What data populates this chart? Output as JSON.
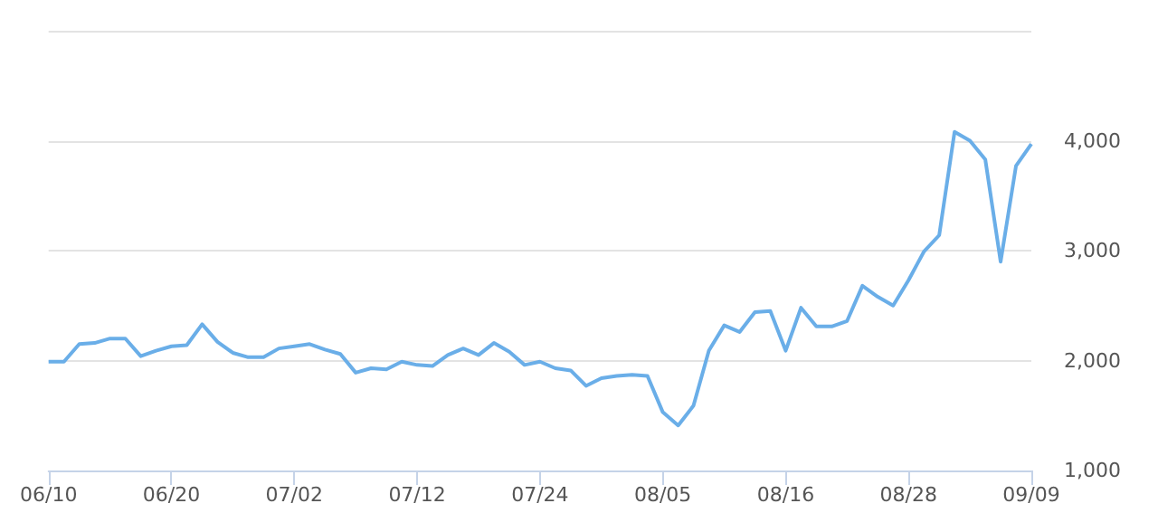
{
  "chart_data": {
    "type": "line",
    "categories": [
      "06/10",
      null,
      null,
      null,
      null,
      null,
      null,
      null,
      "06/20",
      null,
      null,
      null,
      null,
      null,
      null,
      null,
      "07/02",
      null,
      null,
      null,
      null,
      null,
      null,
      null,
      "07/12",
      null,
      null,
      null,
      null,
      null,
      null,
      null,
      "07/24",
      null,
      null,
      null,
      null,
      null,
      null,
      null,
      "08/05",
      null,
      null,
      null,
      null,
      null,
      null,
      null,
      "08/16",
      null,
      null,
      null,
      null,
      null,
      null,
      null,
      "08/28",
      null,
      null,
      null,
      null,
      null,
      null,
      null,
      "09/09"
    ],
    "series": [
      {
        "color": "#6aaee8",
        "values": [
          1990,
          1990,
          2150,
          2160,
          2200,
          2200,
          2040,
          2090,
          2130,
          2140,
          2330,
          2170,
          2070,
          2030,
          2030,
          2110,
          2130,
          2150,
          2100,
          2060,
          1890,
          1930,
          1920,
          1990,
          1960,
          1950,
          2050,
          2110,
          2050,
          2160,
          2080,
          1960,
          1990,
          1930,
          1910,
          1770,
          1840,
          1860,
          1870,
          1860,
          1530,
          1410,
          1590,
          2090,
          2320,
          2260,
          2440,
          2450,
          2090,
          2480,
          2310,
          2310,
          2360,
          2680,
          2580,
          2500,
          2730,
          2990,
          3140,
          4080,
          4000,
          3830,
          2900,
          3770,
          3970
        ]
      }
    ],
    "ylim": [
      1000,
      5000
    ],
    "yticks": [
      {
        "value": 1000,
        "label": "1,000"
      },
      {
        "value": 2000,
        "label": "2,000"
      },
      {
        "value": 3000,
        "label": "3,000"
      },
      {
        "value": 4000,
        "label": "4,000"
      },
      {
        "value": 5000,
        "label": null
      }
    ],
    "grid": "y",
    "marker": "none",
    "line_style": "solid"
  }
}
